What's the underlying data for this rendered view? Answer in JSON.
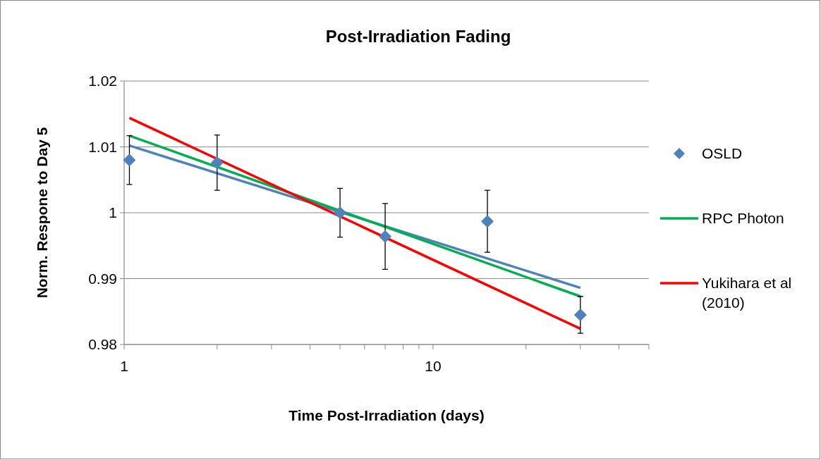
{
  "chart_data": {
    "type": "scatter",
    "title": "Post-Irradiation Fading",
    "xlabel": "Time Post-Irradiation (days)",
    "ylabel": "Norm. Respone to Day 5",
    "log": "x",
    "xlim": [
      1,
      50
    ],
    "ylim": [
      0.98,
      1.02
    ],
    "xticks": [
      1,
      {
        "value": 2,
        "label": null
      },
      {
        "value": 3,
        "label": null
      },
      {
        "value": 4,
        "label": null
      },
      {
        "value": 5,
        "label": null
      },
      {
        "value": 6,
        "label": null
      },
      {
        "value": 7,
        "label": null
      },
      {
        "value": 8,
        "label": null
      },
      {
        "value": 9,
        "label": null
      },
      10,
      {
        "value": 20,
        "label": null
      },
      {
        "value": 30,
        "label": null
      },
      {
        "value": 40,
        "label": null
      },
      {
        "value": 50,
        "label": null
      }
    ],
    "yticks": [
      0.98,
      0.99,
      1,
      1.01,
      1.02
    ],
    "grid": "y",
    "legend": "right",
    "series": [
      {
        "name": "OSLD",
        "marker": "diamond",
        "color": "#4f81bd",
        "x": [
          1.04,
          2,
          5,
          7,
          15,
          30
        ],
        "values": [
          1.008,
          1.0076,
          1.0,
          0.9964,
          0.9987,
          0.9845
        ],
        "errors": [
          0.0037,
          0.0042,
          0.0037,
          0.005,
          0.0047,
          0.0028
        ]
      },
      {
        "type": "line",
        "color": "#4f81bd",
        "marker": "none",
        "x": [
          1.04,
          30
        ],
        "values": [
          1.0102,
          0.9886
        ]
      },
      {
        "name": "RPC Photon",
        "type": "line",
        "color": "#00b050",
        "marker": "none",
        "x": [
          1.04,
          30
        ],
        "values": [
          1.0117,
          0.9873
        ]
      },
      {
        "name": "Yukihara et al (2010)",
        "type": "line",
        "color": "#ff0000",
        "marker": "none",
        "x": [
          1.04,
          30
        ],
        "values": [
          1.0144,
          0.9824
        ]
      }
    ]
  }
}
